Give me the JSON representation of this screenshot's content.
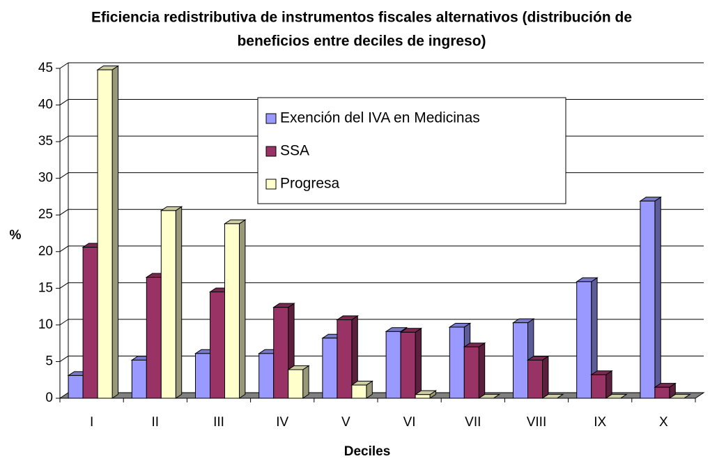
{
  "chart_data": {
    "type": "bar3d",
    "title": "Eficiencia redistributiva de instrumentos fiscales alternativos (distribución de beneficios entre deciles de ingreso)",
    "title_lines": [
      "Eficiencia redistributiva de instrumentos fiscales alternativos (distribución de",
      "beneficios entre deciles de ingreso)"
    ],
    "x_label": "Deciles",
    "y_label": "%",
    "categories": [
      "I",
      "II",
      "III",
      "IV",
      "V",
      "VI",
      "VII",
      "VIII",
      "IX",
      "X"
    ],
    "series": [
      {
        "name": "Exención del IVA en Medicinas",
        "color": "#9999ff",
        "values": [
          3.1,
          5.2,
          6.1,
          6.1,
          8.2,
          9.1,
          9.7,
          10.3,
          15.9,
          26.9
        ]
      },
      {
        "name": "SSA",
        "color": "#993366",
        "values": [
          20.6,
          16.5,
          14.5,
          12.4,
          10.7,
          9.0,
          7.0,
          5.2,
          3.2,
          1.5
        ]
      },
      {
        "name": "Progresa",
        "color": "#ffffcc",
        "values": [
          44.8,
          25.6,
          23.8,
          3.9,
          1.8,
          0.5,
          0,
          0,
          0,
          0
        ]
      }
    ],
    "ylim": [
      0,
      45
    ],
    "yticks": [
      0,
      5,
      10,
      15,
      20,
      25,
      30,
      35,
      40,
      45
    ],
    "grid": true
  }
}
